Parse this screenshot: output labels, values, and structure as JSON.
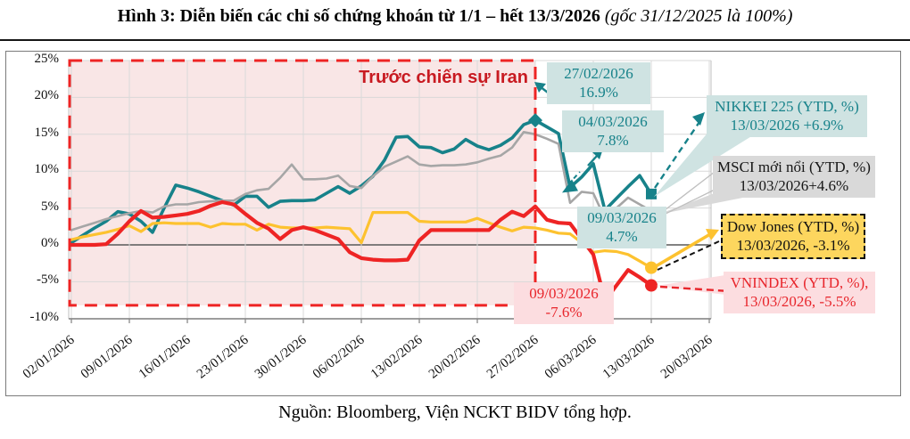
{
  "title": {
    "main": "Hình 3: Diễn biến các chỉ số chứng khoán từ 1/1 – hết 13/3/2026 ",
    "note": "(gốc 31/12/2025 là 100%)"
  },
  "source": "Nguồn: Bloomberg, Viện NCKT BIDV tổng hợp.",
  "annotations": [
    {
      "id": "nikkei-peak",
      "line1": "27/02/2026",
      "line2": "16.9%"
    },
    {
      "id": "nikkei-0403",
      "line1": "04/03/2026",
      "line2": "7.8%"
    },
    {
      "id": "nikkei-0903",
      "line1": "09/03/2026",
      "line2": "4.7%"
    },
    {
      "id": "vnindex-0903",
      "line1": "09/03/2026",
      "line2": "-7.6%"
    }
  ],
  "legend": [
    {
      "name": "NIKKEI 225",
      "line1": "NIKKEI 225 (YTD, %)",
      "line2": "13/03/2026 +6.9%",
      "color": "#17828a"
    },
    {
      "name": "MSCI mới nổi",
      "line1": "MSCI mới nổi (YTD, %)",
      "line2": "13/03/2026+4.6%",
      "color": "#161616"
    },
    {
      "name": "Dow Jones",
      "line1": "Dow Jones (YTD, %)",
      "line2": "13/03/2026, -3.1%",
      "color": "#111111"
    },
    {
      "name": "VNINDEX",
      "line1": "VNINDEX (YTD, %),",
      "line2": "13/03/2026, -5.5%",
      "color": "#e8262c"
    }
  ],
  "chart_data": {
    "type": "line",
    "x_year": "2026",
    "x_tick_labels": [
      "02/01/2026",
      "09/01/2026",
      "16/01/2026",
      "23/01/2026",
      "30/01/2026",
      "06/02/2026",
      "13/02/2026",
      "20/02/2026",
      "27/02/2026",
      "06/03/2026",
      "13/03/2026",
      "20/03/2026"
    ],
    "y_tick_labels": [
      "25%",
      "20%",
      "15%",
      "10%",
      "5%",
      "0%",
      "-5%",
      "-10%"
    ],
    "y_tick_values": [
      25,
      20,
      15,
      10,
      5,
      0,
      -5,
      -10
    ],
    "ylim": [
      -10,
      25
    ],
    "grid": true,
    "x_dates": [
      "02/01",
      "05/01",
      "06/01",
      "07/01",
      "08/01",
      "09/01",
      "12/01",
      "13/01",
      "14/01",
      "15/01",
      "16/01",
      "19/01",
      "20/01",
      "21/01",
      "22/01",
      "23/01",
      "26/01",
      "27/01",
      "28/01",
      "29/01",
      "30/01",
      "02/02",
      "03/02",
      "04/02",
      "05/02",
      "06/02",
      "09/02",
      "10/02",
      "11/02",
      "12/02",
      "13/02",
      "16/02",
      "17/02",
      "18/02",
      "19/02",
      "20/02",
      "23/02",
      "24/02",
      "25/02",
      "26/02",
      "27/02",
      "02/03",
      "03/03",
      "04/03",
      "05/03",
      "06/03",
      "09/03",
      "10/03",
      "11/03",
      "12/03",
      "13/03"
    ],
    "series": [
      {
        "name": "NIKKEI 225 (YTD, %)",
        "color": "#17828a",
        "width": 3.6,
        "values": [
          0.3,
          1.3,
          2.3,
          3.2,
          4.5,
          4.2,
          3.2,
          1.7,
          5.0,
          8.1,
          7.7,
          7.2,
          6.6,
          6.0,
          5.4,
          6.6,
          6.6,
          5.1,
          5.9,
          6.0,
          6.0,
          6.1,
          7.0,
          7.9,
          7.0,
          8.0,
          9.3,
          11.5,
          14.6,
          14.7,
          13.3,
          13.2,
          12.5,
          13.0,
          14.3,
          13.4,
          12.9,
          13.5,
          14.5,
          16.3,
          16.9,
          16.0,
          15.1,
          7.8,
          9.2,
          11.0,
          4.7,
          6.3,
          7.9,
          9.4,
          6.9
        ],
        "markers": [
          {
            "index": 40,
            "shape": "diamond"
          },
          {
            "index": 43,
            "shape": "triangle"
          },
          {
            "index": 50,
            "shape": "square"
          }
        ]
      },
      {
        "name": "MSCI mới nổi (YTD, %)",
        "color": "#a6a6a6",
        "width": 2.6,
        "values": [
          2.0,
          2.5,
          3.0,
          3.5,
          3.9,
          4.3,
          4.6,
          4.4,
          5.2,
          5.5,
          5.5,
          5.8,
          5.9,
          6.0,
          6.0,
          6.9,
          7.4,
          7.6,
          9.1,
          10.9,
          8.9,
          8.9,
          9.0,
          9.4,
          8.0,
          7.7,
          9.3,
          10.6,
          11.3,
          12.0,
          10.9,
          10.7,
          10.8,
          10.8,
          10.9,
          11.2,
          11.7,
          12.1,
          13.2,
          15.3,
          15.0,
          14.4,
          13.7,
          5.7,
          7.2,
          7.0,
          3.6,
          5.0,
          6.4,
          5.5,
          4.6
        ],
        "markers": []
      },
      {
        "name": "Dow Jones (YTD, %)",
        "color": "#fdc22f",
        "width": 3.2,
        "values": [
          0.7,
          1.1,
          1.4,
          1.7,
          2.1,
          2.6,
          1.8,
          2.9,
          3.0,
          2.9,
          2.9,
          2.9,
          2.4,
          2.9,
          2.8,
          2.8,
          2.0,
          2.8,
          2.4,
          2.3,
          2.3,
          2.3,
          2.4,
          2.3,
          2.2,
          0.3,
          4.4,
          4.4,
          4.4,
          4.4,
          3.2,
          3.1,
          3.1,
          3.1,
          3.1,
          3.6,
          3.0,
          2.4,
          1.9,
          2.4,
          2.3,
          2.0,
          1.6,
          1.5,
          0.3,
          -1.0,
          -0.8,
          -0.9,
          -1.3,
          -2.2,
          -3.1
        ],
        "markers": [
          {
            "index": 50,
            "shape": "dot"
          }
        ]
      },
      {
        "name": "VNINDEX (YTD, %)",
        "color": "#ee2424",
        "width": 4.2,
        "values": [
          0.0,
          0.0,
          0.0,
          0.1,
          1.5,
          3.2,
          4.6,
          3.7,
          3.8,
          4.0,
          4.2,
          4.6,
          5.3,
          5.8,
          5.5,
          4.2,
          3.0,
          2.2,
          0.8,
          2.0,
          2.4,
          2.0,
          1.4,
          0.8,
          -1.0,
          -1.8,
          -2.0,
          -2.1,
          -2.1,
          -2.0,
          0.6,
          2.0,
          2.0,
          2.0,
          2.0,
          2.0,
          2.0,
          3.4,
          4.5,
          3.9,
          5.2,
          3.4,
          3.0,
          2.9,
          0.8,
          -1.3,
          -7.6,
          -5.5,
          -3.4,
          -4.4,
          -5.5
        ],
        "markers": [
          {
            "index": 46,
            "shape": "dot"
          },
          {
            "index": 50,
            "shape": "dot"
          }
        ]
      }
    ],
    "highlight_region": {
      "label": "Trước chiến sự Iran",
      "start_index": 0,
      "end_index": 40,
      "y_top": 25,
      "y_bottom": -8.2,
      "fill": "#f9e6e6",
      "border": "#ee2424"
    }
  }
}
